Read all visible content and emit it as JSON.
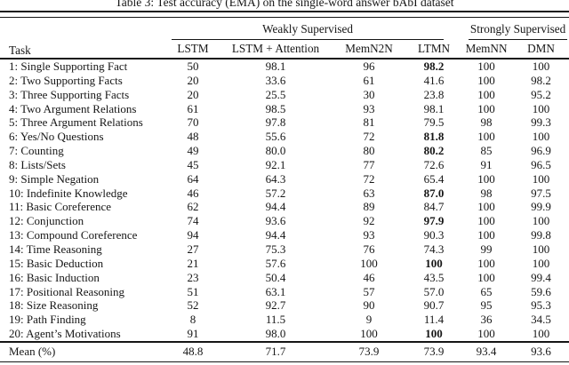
{
  "title": "Table 3: Test accuracy (EMA) on the single-word answer bAbI dataset",
  "table": {
    "task_header": "Task",
    "groups": [
      {
        "label": "Weakly Supervised",
        "span": 4
      },
      {
        "label": "Strongly Supervised",
        "span": 2
      }
    ],
    "columns": [
      "LSTM",
      "LSTM + Attention",
      "MemN2N",
      "LTMN",
      "MemNN",
      "DMN"
    ],
    "rows": [
      {
        "task": "1: Single Supporting Fact",
        "values": [
          "50",
          "98.1",
          "96",
          "98.2",
          "100",
          "100"
        ],
        "bold": [
          3
        ]
      },
      {
        "task": "2: Two Supporting Facts",
        "values": [
          "20",
          "33.6",
          "61",
          "41.6",
          "100",
          "98.2"
        ],
        "bold": []
      },
      {
        "task": "3: Three Supporting Facts",
        "values": [
          "20",
          "25.5",
          "30",
          "23.8",
          "100",
          "95.2"
        ],
        "bold": []
      },
      {
        "task": "4: Two Argument Relations",
        "values": [
          "61",
          "98.5",
          "93",
          "98.1",
          "100",
          "100"
        ],
        "bold": []
      },
      {
        "task": "5: Three Argument Relations",
        "values": [
          "70",
          "97.8",
          "81",
          "79.5",
          "98",
          "99.3"
        ],
        "bold": []
      },
      {
        "task": "6: Yes/No Questions",
        "values": [
          "48",
          "55.6",
          "72",
          "81.8",
          "100",
          "100"
        ],
        "bold": [
          3
        ]
      },
      {
        "task": "7: Counting",
        "values": [
          "49",
          "80.0",
          "80",
          "80.2",
          "85",
          "96.9"
        ],
        "bold": [
          3
        ]
      },
      {
        "task": "8: Lists/Sets",
        "values": [
          "45",
          "92.1",
          "77",
          "72.6",
          "91",
          "96.5"
        ],
        "bold": []
      },
      {
        "task": "9: Simple Negation",
        "values": [
          "64",
          "64.3",
          "72",
          "65.4",
          "100",
          "100"
        ],
        "bold": []
      },
      {
        "task": "10: Indefinite Knowledge",
        "values": [
          "46",
          "57.2",
          "63",
          "87.0",
          "98",
          "97.5"
        ],
        "bold": [
          3
        ]
      },
      {
        "task": "11: Basic Coreference",
        "values": [
          "62",
          "94.4",
          "89",
          "84.7",
          "100",
          "99.9"
        ],
        "bold": []
      },
      {
        "task": "12: Conjunction",
        "values": [
          "74",
          "93.6",
          "92",
          "97.9",
          "100",
          "100"
        ],
        "bold": [
          3
        ]
      },
      {
        "task": "13: Compound Coreference",
        "values": [
          "94",
          "94.4",
          "93",
          "90.3",
          "100",
          "99.8"
        ],
        "bold": []
      },
      {
        "task": "14: Time Reasoning",
        "values": [
          "27",
          "75.3",
          "76",
          "74.3",
          "99",
          "100"
        ],
        "bold": []
      },
      {
        "task": "15: Basic Deduction",
        "values": [
          "21",
          "57.6",
          "100",
          "100",
          "100",
          "100"
        ],
        "bold": [
          3
        ]
      },
      {
        "task": "16: Basic Induction",
        "values": [
          "23",
          "50.4",
          "46",
          "43.5",
          "100",
          "99.4"
        ],
        "bold": []
      },
      {
        "task": "17: Positional Reasoning",
        "values": [
          "51",
          "63.1",
          "57",
          "57.0",
          "65",
          "59.6"
        ],
        "bold": []
      },
      {
        "task": "18: Size Reasoning",
        "values": [
          "52",
          "92.7",
          "90",
          "90.7",
          "95",
          "95.3"
        ],
        "bold": []
      },
      {
        "task": "19: Path Finding",
        "values": [
          "8",
          "11.5",
          "9",
          "11.4",
          "36",
          "34.5"
        ],
        "bold": []
      },
      {
        "task": "20: Agent’s Motivations",
        "values": [
          "91",
          "98.0",
          "100",
          "100",
          "100",
          "100"
        ],
        "bold": [
          3
        ]
      }
    ],
    "footer": {
      "task": "Mean (%)",
      "values": [
        "48.8",
        "71.7",
        "73.9",
        "73.9",
        "93.4",
        "93.6"
      ]
    }
  }
}
